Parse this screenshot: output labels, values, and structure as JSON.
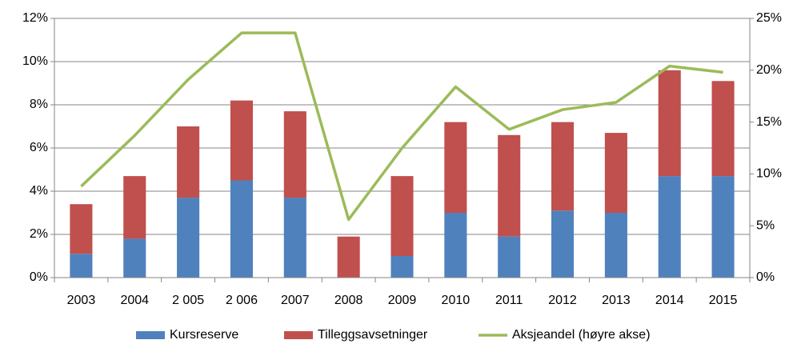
{
  "chart_data": {
    "type": "bar",
    "categories": [
      "2003",
      "2004",
      "2 005",
      "2 006",
      "2007",
      "2008",
      "2009",
      "2010",
      "2011",
      "2012",
      "2013",
      "2014",
      "2015"
    ],
    "stacked": true,
    "series": [
      {
        "name": "Kursreserve",
        "color": "#4f81bd",
        "type": "bar",
        "values": [
          1.1,
          1.8,
          3.7,
          4.5,
          3.7,
          0,
          1.0,
          3.0,
          1.9,
          3.1,
          3.0,
          4.7,
          4.7
        ]
      },
      {
        "name": "Tilleggsavsetninger",
        "color": "#c0504d",
        "type": "bar",
        "values": [
          2.3,
          2.9,
          3.3,
          3.7,
          4.0,
          1.9,
          3.7,
          4.2,
          4.7,
          4.1,
          3.7,
          4.9,
          4.4
        ]
      },
      {
        "name": "Aksjeandel (høyre akse)",
        "color": "#9bbb59",
        "type": "line",
        "axis": "y2",
        "values": [
          8.8,
          13.7,
          19.1,
          23.6,
          23.6,
          5.6,
          12.5,
          18.4,
          14.3,
          16.2,
          16.9,
          20.4,
          19.8
        ]
      }
    ],
    "ylim": [
      0,
      12
    ],
    "yticks": [
      {
        "value": 0,
        "label": "0%"
      },
      {
        "value": 2,
        "label": "2%"
      },
      {
        "value": 4,
        "label": "4%"
      },
      {
        "value": 6,
        "label": "6%"
      },
      {
        "value": 8,
        "label": "8%"
      },
      {
        "value": 10,
        "label": "10%"
      },
      {
        "value": 12,
        "label": "12%"
      }
    ],
    "y2lim": [
      0,
      25
    ],
    "y2ticks": [
      {
        "value": 0,
        "label": "0%"
      },
      {
        "value": 5,
        "label": "5%"
      },
      {
        "value": 10,
        "label": "10%"
      },
      {
        "value": 15,
        "label": "15%"
      },
      {
        "value": 20,
        "label": "20%"
      },
      {
        "value": 25,
        "label": "25%"
      }
    ],
    "grid": true,
    "legend": "bottom"
  }
}
